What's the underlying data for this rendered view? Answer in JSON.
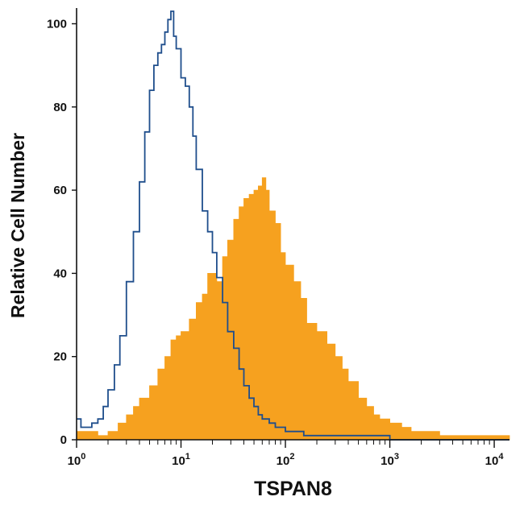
{
  "chart_data": {
    "type": "area",
    "xlabel": "TSPAN8",
    "ylabel": "Relative Cell Number",
    "xscale": "log",
    "xlim": [
      1,
      14000
    ],
    "ylim": [
      0,
      103
    ],
    "grid": false,
    "x_ticks": [
      {
        "base": "10",
        "exp": "0",
        "value": 1
      },
      {
        "base": "10",
        "exp": "1",
        "value": 10
      },
      {
        "base": "10",
        "exp": "2",
        "value": 100
      },
      {
        "base": "10",
        "exp": "3",
        "value": 1000
      },
      {
        "base": "10",
        "exp": "4",
        "value": 10000
      }
    ],
    "y_ticks": [
      0,
      20,
      40,
      60,
      80,
      100
    ],
    "series": [
      {
        "style": "filled",
        "color": "#f6a11f",
        "x": [
          1,
          1.3,
          1.6,
          2,
          2.5,
          3,
          3.5,
          4,
          5,
          6,
          7,
          8,
          9,
          10,
          12,
          14,
          16,
          18,
          20,
          22,
          25,
          28,
          32,
          36,
          40,
          45,
          50,
          55,
          60,
          65,
          70,
          80,
          90,
          100,
          120,
          140,
          160,
          200,
          250,
          300,
          350,
          400,
          500,
          600,
          700,
          800,
          1000,
          1300,
          1600,
          2000,
          3000,
          5000,
          8000,
          14000
        ],
        "values": [
          2,
          2,
          1,
          2,
          4,
          6,
          8,
          10,
          13,
          17,
          20,
          24,
          25,
          26,
          29,
          33,
          35,
          40,
          40,
          38,
          44,
          48,
          53,
          56,
          58,
          59,
          60,
          61,
          63,
          60,
          55,
          52,
          45,
          42,
          38,
          34,
          28,
          26,
          23,
          20,
          17,
          14,
          10,
          8,
          6,
          5,
          4,
          3,
          2,
          2,
          1,
          1,
          1,
          1
        ]
      },
      {
        "style": "outline",
        "color": "#1f4e8c",
        "x": [
          1,
          1.1,
          1.2,
          1.4,
          1.6,
          1.8,
          2,
          2.3,
          2.6,
          3,
          3.5,
          4,
          4.5,
          5,
          5.5,
          6,
          6.5,
          7,
          7.5,
          8,
          8.5,
          9,
          10,
          11,
          12,
          13,
          14,
          16,
          18,
          20,
          22,
          25,
          28,
          32,
          36,
          40,
          45,
          50,
          55,
          60,
          70,
          80,
          100,
          120,
          150,
          200,
          300,
          500,
          1000,
          2000,
          5000,
          14000
        ],
        "values": [
          5,
          3,
          3,
          4,
          5,
          8,
          12,
          18,
          25,
          38,
          50,
          62,
          74,
          84,
          90,
          93,
          95,
          98,
          101,
          103,
          97,
          94,
          87,
          85,
          80,
          73,
          65,
          55,
          50,
          45,
          39,
          33,
          26,
          22,
          17,
          13,
          10,
          8,
          6,
          5,
          4,
          3,
          2,
          2,
          1,
          1,
          1,
          1,
          0,
          0,
          0,
          0
        ]
      }
    ]
  }
}
